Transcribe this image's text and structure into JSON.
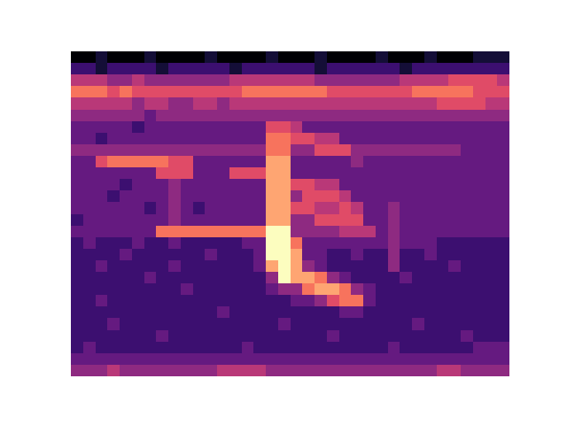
{
  "chart_data": {
    "type": "heatmap",
    "tick_labels": false,
    "cells": [
      [
        0,
        0,
        1,
        0,
        0,
        0,
        1,
        0,
        0,
        0,
        0,
        1,
        0,
        0,
        0,
        0,
        1,
        0,
        0,
        0,
        1,
        0,
        0,
        0,
        0,
        1,
        0,
        0,
        0,
        1,
        0,
        0,
        0,
        1,
        1,
        1
      ],
      [
        2,
        2,
        1,
        2,
        2,
        2,
        2,
        1,
        2,
        2,
        2,
        2,
        2,
        1,
        2,
        2,
        2,
        2,
        2,
        2,
        1,
        2,
        2,
        2,
        2,
        2,
        2,
        1,
        2,
        2,
        2,
        2,
        2,
        2,
        2,
        2
      ],
      [
        5,
        5,
        5,
        4,
        4,
        5,
        4,
        4,
        4,
        4,
        4,
        4,
        4,
        5,
        5,
        5,
        5,
        5,
        5,
        5,
        4,
        4,
        4,
        4,
        4,
        4,
        4,
        5,
        5,
        5,
        5,
        6,
        6,
        6,
        6,
        5
      ],
      [
        7,
        7,
        7,
        6,
        7,
        6,
        6,
        6,
        6,
        6,
        6,
        6,
        6,
        6,
        7,
        7,
        7,
        7,
        7,
        7,
        7,
        6,
        6,
        6,
        6,
        6,
        6,
        6,
        7,
        7,
        7,
        7,
        7,
        6,
        6,
        6
      ],
      [
        5,
        5,
        5,
        5,
        5,
        4,
        5,
        5,
        4,
        4,
        5,
        5,
        4,
        5,
        5,
        5,
        5,
        5,
        5,
        5,
        5,
        5,
        5,
        5,
        5,
        5,
        5,
        5,
        5,
        5,
        6,
        6,
        6,
        6,
        5,
        5
      ],
      [
        4,
        4,
        4,
        4,
        4,
        4,
        3,
        4,
        4,
        4,
        4,
        4,
        4,
        4,
        4,
        4,
        4,
        4,
        4,
        4,
        4,
        4,
        4,
        4,
        4,
        4,
        4,
        4,
        4,
        4,
        4,
        4,
        4,
        4,
        4,
        4
      ],
      [
        3,
        3,
        3,
        3,
        3,
        2,
        3,
        3,
        3,
        3,
        3,
        3,
        3,
        3,
        3,
        3,
        6,
        6,
        5,
        3,
        3,
        3,
        3,
        3,
        3,
        3,
        3,
        3,
        3,
        3,
        3,
        3,
        3,
        3,
        3,
        3
      ],
      [
        3,
        3,
        2,
        3,
        3,
        3,
        3,
        3,
        3,
        3,
        3,
        3,
        3,
        3,
        3,
        3,
        7,
        7,
        6,
        6,
        5,
        5,
        3,
        3,
        3,
        3,
        3,
        3,
        3,
        3,
        3,
        3,
        3,
        3,
        3,
        3
      ],
      [
        4,
        4,
        4,
        4,
        4,
        4,
        4,
        4,
        4,
        4,
        4,
        4,
        4,
        4,
        4,
        4,
        7,
        7,
        4,
        4,
        6,
        6,
        6,
        4,
        4,
        4,
        4,
        4,
        4,
        4,
        4,
        4,
        3,
        3,
        3,
        3
      ],
      [
        3,
        3,
        6,
        7,
        7,
        7,
        7,
        7,
        6,
        6,
        3,
        3,
        3,
        3,
        3,
        3,
        8,
        8,
        3,
        3,
        3,
        3,
        3,
        4,
        3,
        3,
        3,
        3,
        3,
        3,
        3,
        3,
        3,
        3,
        3,
        3
      ],
      [
        3,
        3,
        3,
        3,
        3,
        3,
        3,
        6,
        6,
        6,
        3,
        3,
        3,
        6,
        6,
        6,
        8,
        8,
        3,
        3,
        3,
        3,
        3,
        3,
        3,
        3,
        3,
        3,
        3,
        3,
        3,
        3,
        3,
        3,
        3,
        3
      ],
      [
        3,
        3,
        3,
        3,
        2,
        3,
        3,
        3,
        4,
        3,
        3,
        3,
        3,
        3,
        3,
        3,
        8,
        8,
        6,
        6,
        5,
        5,
        3,
        3,
        3,
        3,
        3,
        3,
        3,
        3,
        3,
        3,
        3,
        3,
        3,
        3
      ],
      [
        3,
        3,
        3,
        2,
        3,
        3,
        3,
        3,
        4,
        3,
        3,
        3,
        3,
        3,
        3,
        3,
        8,
        8,
        4,
        6,
        6,
        6,
        5,
        3,
        3,
        3,
        3,
        3,
        3,
        3,
        3,
        3,
        3,
        3,
        3,
        3
      ],
      [
        3,
        3,
        3,
        3,
        3,
        3,
        2,
        3,
        4,
        3,
        2,
        3,
        3,
        3,
        3,
        3,
        8,
        8,
        6,
        6,
        5,
        5,
        6,
        5,
        3,
        3,
        4,
        3,
        3,
        3,
        3,
        3,
        3,
        3,
        3,
        3
      ],
      [
        2,
        3,
        3,
        3,
        3,
        3,
        3,
        3,
        4,
        3,
        3,
        3,
        3,
        3,
        3,
        3,
        8,
        8,
        4,
        4,
        6,
        6,
        6,
        6,
        3,
        3,
        4,
        3,
        3,
        3,
        3,
        3,
        3,
        3,
        3,
        3
      ],
      [
        3,
        3,
        3,
        3,
        3,
        3,
        3,
        7,
        7,
        7,
        7,
        7,
        7,
        7,
        7,
        7,
        9,
        9,
        4,
        4,
        4,
        4,
        5,
        5,
        5,
        3,
        4,
        3,
        3,
        3,
        3,
        3,
        3,
        3,
        3,
        3
      ],
      [
        2,
        3,
        2,
        2,
        2,
        3,
        2,
        2,
        3,
        2,
        2,
        2,
        2,
        2,
        3,
        3,
        9,
        9,
        7,
        3,
        3,
        3,
        3,
        3,
        3,
        3,
        4,
        3,
        3,
        3,
        2,
        2,
        2,
        2,
        2,
        2
      ],
      [
        2,
        2,
        2,
        2,
        3,
        2,
        2,
        2,
        2,
        2,
        2,
        3,
        2,
        2,
        2,
        3,
        9,
        9,
        8,
        3,
        3,
        2,
        2,
        3,
        2,
        2,
        4,
        2,
        2,
        3,
        2,
        2,
        2,
        2,
        2,
        2
      ],
      [
        2,
        2,
        3,
        2,
        2,
        2,
        2,
        2,
        3,
        2,
        2,
        2,
        2,
        2,
        2,
        3,
        8,
        9,
        8,
        4,
        3,
        2,
        2,
        2,
        2,
        2,
        4,
        2,
        2,
        2,
        2,
        3,
        2,
        2,
        2,
        2
      ],
      [
        2,
        2,
        2,
        2,
        2,
        2,
        3,
        2,
        2,
        2,
        2,
        2,
        2,
        2,
        2,
        2,
        4,
        9,
        8,
        8,
        7,
        4,
        3,
        2,
        2,
        2,
        2,
        3,
        2,
        2,
        2,
        2,
        2,
        2,
        2,
        2
      ],
      [
        2,
        2,
        2,
        2,
        2,
        2,
        2,
        2,
        2,
        3,
        2,
        2,
        2,
        2,
        2,
        2,
        3,
        4,
        4,
        7,
        8,
        8,
        7,
        4,
        3,
        2,
        2,
        2,
        2,
        2,
        2,
        2,
        2,
        2,
        2,
        2
      ],
      [
        2,
        2,
        3,
        2,
        2,
        2,
        2,
        2,
        2,
        2,
        2,
        2,
        2,
        2,
        2,
        2,
        2,
        2,
        3,
        3,
        4,
        6,
        7,
        7,
        3,
        2,
        2,
        2,
        2,
        2,
        2,
        2,
        2,
        2,
        2,
        2
      ],
      [
        2,
        2,
        2,
        2,
        2,
        2,
        2,
        2,
        2,
        2,
        2,
        2,
        3,
        2,
        2,
        2,
        2,
        2,
        2,
        2,
        2,
        2,
        3,
        3,
        2,
        2,
        2,
        2,
        2,
        2,
        2,
        2,
        2,
        2,
        2,
        2
      ],
      [
        2,
        2,
        2,
        3,
        2,
        2,
        2,
        2,
        2,
        2,
        2,
        2,
        2,
        2,
        2,
        2,
        2,
        3,
        2,
        2,
        2,
        2,
        2,
        2,
        2,
        2,
        2,
        2,
        3,
        2,
        2,
        2,
        2,
        2,
        2,
        2
      ],
      [
        2,
        2,
        2,
        2,
        2,
        2,
        2,
        3,
        2,
        2,
        2,
        2,
        2,
        2,
        2,
        2,
        2,
        2,
        2,
        2,
        2,
        3,
        2,
        2,
        2,
        2,
        2,
        2,
        2,
        2,
        2,
        2,
        3,
        2,
        2,
        2
      ],
      [
        2,
        3,
        2,
        2,
        2,
        2,
        2,
        2,
        2,
        2,
        2,
        2,
        2,
        2,
        3,
        2,
        2,
        2,
        2,
        2,
        2,
        2,
        2,
        2,
        2,
        2,
        3,
        2,
        2,
        2,
        2,
        2,
        2,
        3,
        3,
        3
      ],
      [
        3,
        3,
        3,
        3,
        3,
        3,
        3,
        3,
        3,
        3,
        3,
        3,
        3,
        3,
        3,
        3,
        3,
        3,
        3,
        3,
        3,
        3,
        3,
        3,
        3,
        3,
        3,
        3,
        3,
        3,
        3,
        3,
        3,
        3,
        3,
        3
      ],
      [
        4,
        4,
        4,
        5,
        4,
        4,
        4,
        4,
        4,
        4,
        4,
        4,
        5,
        5,
        5,
        5,
        4,
        4,
        4,
        4,
        4,
        4,
        4,
        4,
        4,
        4,
        4,
        4,
        4,
        4,
        5,
        5,
        4,
        4,
        4,
        4
      ]
    ]
  }
}
